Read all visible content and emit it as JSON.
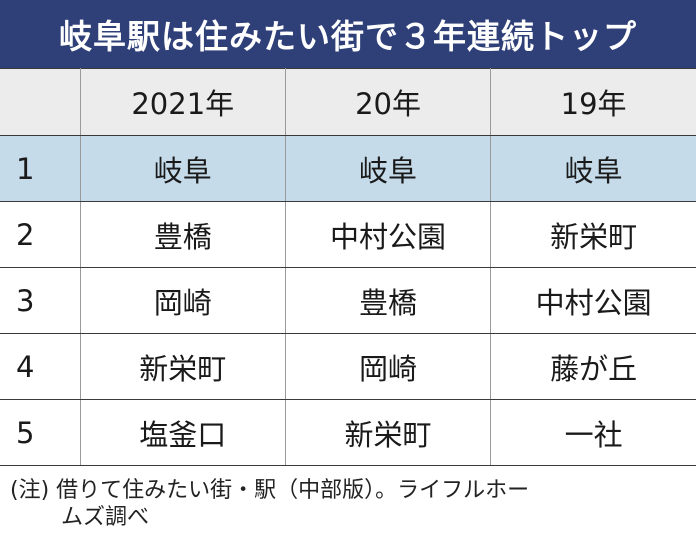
{
  "title": "岐阜駅は住みたい街で３年連続トップ",
  "colors": {
    "title_background": "#2f4079",
    "header_background": "#ececec",
    "highlight_row": "#c5dbea"
  },
  "chart_data": {
    "type": "table",
    "title": "岐阜駅は住みたい街で３年連続トップ",
    "columns": [
      "",
      "2021年",
      "20年",
      "19年"
    ],
    "rows": [
      {
        "rank": "1",
        "values": [
          "岐阜",
          "岐阜",
          "岐阜"
        ],
        "highlight": true
      },
      {
        "rank": "2",
        "values": [
          "豊橋",
          "中村公園",
          "新栄町"
        ],
        "highlight": false
      },
      {
        "rank": "3",
        "values": [
          "岡崎",
          "豊橋",
          "中村公園"
        ],
        "highlight": false
      },
      {
        "rank": "4",
        "values": [
          "新栄町",
          "岡崎",
          "藤が丘"
        ],
        "highlight": false
      },
      {
        "rank": "5",
        "values": [
          "塩釜口",
          "新栄町",
          "一社"
        ],
        "highlight": false
      }
    ]
  },
  "footnote": {
    "line1": "(注) 借りて住みたい街・駅（中部版）。ライフルホー",
    "line2": "ムズ調べ"
  }
}
